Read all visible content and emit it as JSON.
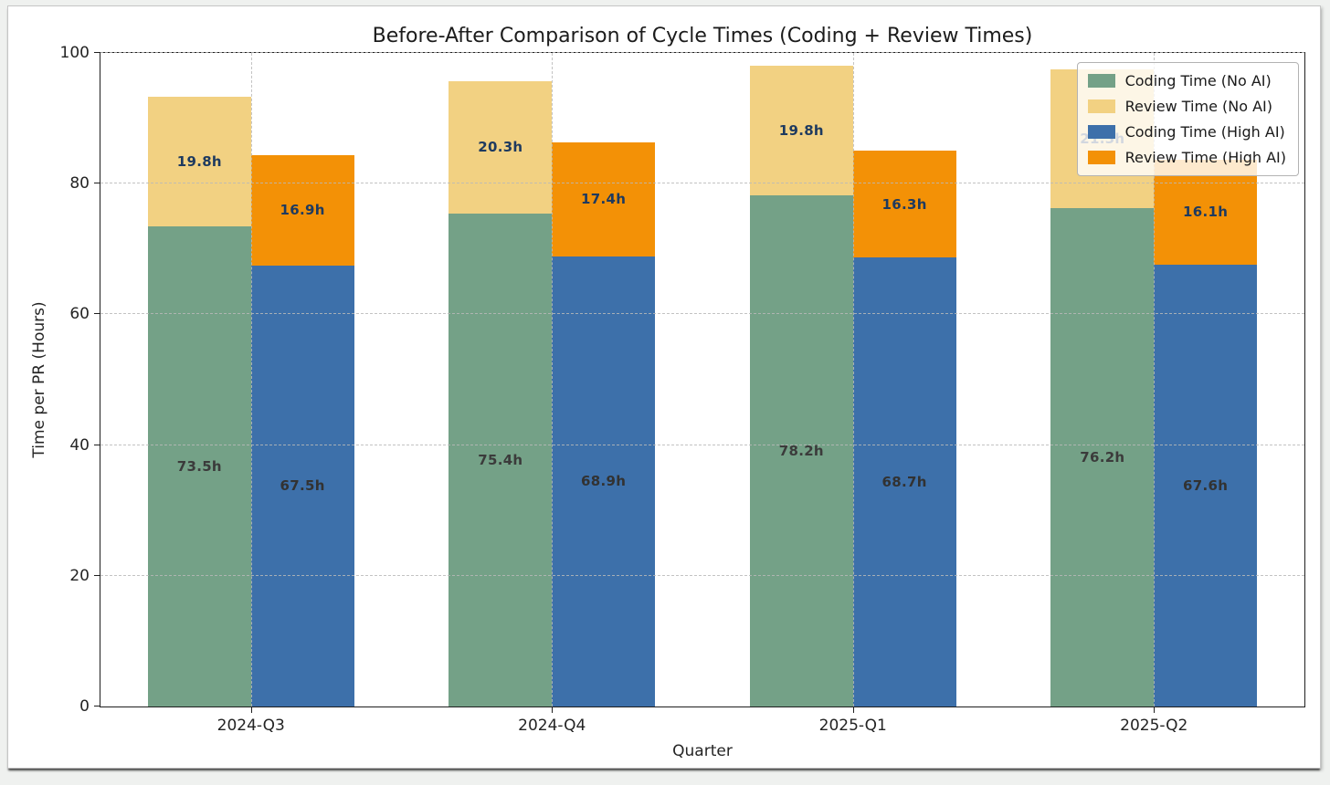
{
  "figure": {
    "background": "#ffffff",
    "page_background": "#eff1ef"
  },
  "chart_data": {
    "type": "bar",
    "stacked": true,
    "title": "Before-After Comparison of Cycle Times (Coding + Review Times)",
    "xlabel": "Quarter",
    "ylabel": "Time per PR (Hours)",
    "ylim": [
      0,
      100
    ],
    "yticks": [
      0,
      20,
      40,
      60,
      80,
      100
    ],
    "categories": [
      "2024-Q3",
      "2024-Q4",
      "2025-Q1",
      "2025-Q2"
    ],
    "grid": true,
    "legend_position": "upper right",
    "bar_width_pct": 8.56,
    "groups": [
      {
        "name": "No AI",
        "segments": [
          {
            "legend": "Coding Time (No AI)",
            "color": "#74a187",
            "values": [
              73.5,
              75.4,
              78.2,
              76.2
            ],
            "value_labels": [
              "73.5h",
              "75.4h",
              "78.2h",
              "76.2h"
            ],
            "label_color": "#3b3b3b"
          },
          {
            "legend": "Review Time (No AI)",
            "color": "#f2d182",
            "values": [
              19.8,
              20.3,
              19.8,
              21.3
            ],
            "value_labels": [
              "19.8h",
              "20.3h",
              "19.8h",
              "21.3h"
            ],
            "label_color": "#1e3a5f"
          }
        ]
      },
      {
        "name": "High AI",
        "segments": [
          {
            "legend": "Coding Time (High AI)",
            "color": "#3d70aa",
            "values": [
              67.5,
              68.9,
              68.7,
              67.6
            ],
            "value_labels": [
              "67.5h",
              "68.9h",
              "68.7h",
              "67.6h"
            ],
            "label_color": "#323232"
          },
          {
            "legend": "Review Time (High AI)",
            "color": "#f39106",
            "values": [
              16.9,
              17.4,
              16.3,
              16.1
            ],
            "value_labels": [
              "16.9h",
              "17.4h",
              "16.3h",
              "16.1h"
            ],
            "label_color": "#1e3a5f"
          }
        ]
      }
    ]
  }
}
